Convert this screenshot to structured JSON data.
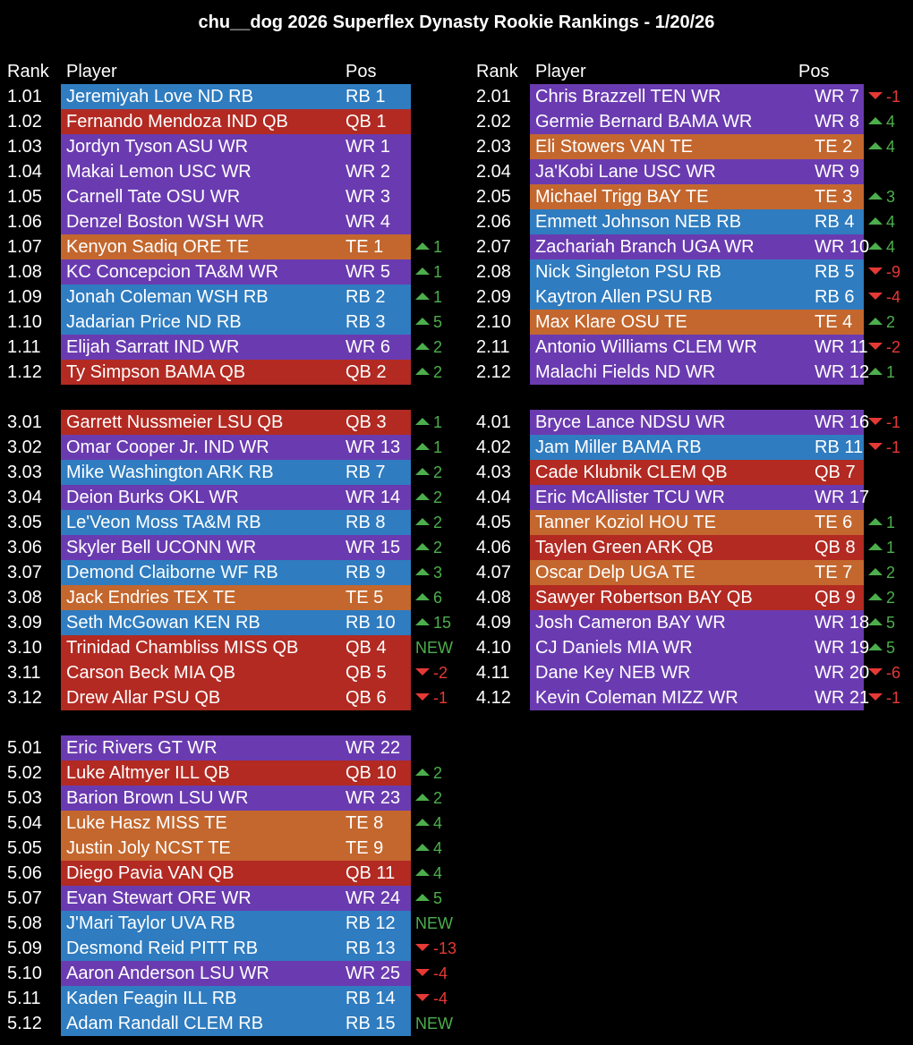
{
  "title": "chu__dog 2026 Superflex Dynasty Rookie Rankings - 1/20/26",
  "headers": {
    "rank": "Rank",
    "player": "Player",
    "pos": "Pos"
  },
  "colors": {
    "RB": "#2f7cc0",
    "QB": "#b22a22",
    "WR": "#6a3bb0",
    "TE": "#c3672e",
    "up": "#4cae4c",
    "down": "#e53935"
  },
  "left": [
    {
      "rank": "1.01",
      "player": "Jeremiyah Love ND RB",
      "pos": "RB 1",
      "type": "RB",
      "chg": "",
      "dir": ""
    },
    {
      "rank": "1.02",
      "player": "Fernando Mendoza IND QB",
      "pos": "QB 1",
      "type": "QB",
      "chg": "",
      "dir": ""
    },
    {
      "rank": "1.03",
      "player": "Jordyn Tyson ASU WR",
      "pos": "WR 1",
      "type": "WR",
      "chg": "",
      "dir": ""
    },
    {
      "rank": "1.04",
      "player": "Makai Lemon USC WR",
      "pos": "WR 2",
      "type": "WR",
      "chg": "",
      "dir": ""
    },
    {
      "rank": "1.05",
      "player": "Carnell Tate OSU WR",
      "pos": "WR 3",
      "type": "WR",
      "chg": "",
      "dir": ""
    },
    {
      "rank": "1.06",
      "player": "Denzel Boston WSH WR",
      "pos": "WR 4",
      "type": "WR",
      "chg": "",
      "dir": ""
    },
    {
      "rank": "1.07",
      "player": "Kenyon Sadiq ORE TE",
      "pos": "TE 1",
      "type": "TE",
      "chg": "1",
      "dir": "up"
    },
    {
      "rank": "1.08",
      "player": "KC Concepcion TA&M WR",
      "pos": "WR 5",
      "type": "WR",
      "chg": "1",
      "dir": "up"
    },
    {
      "rank": "1.09",
      "player": "Jonah Coleman WSH RB",
      "pos": "RB 2",
      "type": "RB",
      "chg": "1",
      "dir": "up"
    },
    {
      "rank": "1.10",
      "player": "Jadarian Price ND RB",
      "pos": "RB 3",
      "type": "RB",
      "chg": "5",
      "dir": "up"
    },
    {
      "rank": "1.11",
      "player": "Elijah Sarratt IND WR",
      "pos": "WR 6",
      "type": "WR",
      "chg": "2",
      "dir": "up"
    },
    {
      "rank": "1.12",
      "player": "Ty Simpson BAMA QB",
      "pos": "QB 2",
      "type": "QB",
      "chg": "2",
      "dir": "up"
    },
    {
      "gap": true
    },
    {
      "rank": "3.01",
      "player": "Garrett Nussmeier LSU QB",
      "pos": "QB 3",
      "type": "QB",
      "chg": "1",
      "dir": "up"
    },
    {
      "rank": "3.02",
      "player": "Omar Cooper Jr. IND WR",
      "pos": "WR 13",
      "type": "WR",
      "chg": "1",
      "dir": "up"
    },
    {
      "rank": "3.03",
      "player": "Mike Washington ARK RB",
      "pos": "RB 7",
      "type": "RB",
      "chg": "2",
      "dir": "up"
    },
    {
      "rank": "3.04",
      "player": "Deion Burks OKL WR",
      "pos": "WR 14",
      "type": "WR",
      "chg": "2",
      "dir": "up"
    },
    {
      "rank": "3.05",
      "player": "Le'Veon Moss TA&M RB",
      "pos": "RB 8",
      "type": "RB",
      "chg": "2",
      "dir": "up"
    },
    {
      "rank": "3.06",
      "player": "Skyler Bell UCONN WR",
      "pos": "WR 15",
      "type": "WR",
      "chg": "2",
      "dir": "up"
    },
    {
      "rank": "3.07",
      "player": "Demond Claiborne WF RB",
      "pos": "RB 9",
      "type": "RB",
      "chg": "3",
      "dir": "up"
    },
    {
      "rank": "3.08",
      "player": "Jack Endries TEX TE",
      "pos": "TE 5",
      "type": "TE",
      "chg": "6",
      "dir": "up"
    },
    {
      "rank": "3.09",
      "player": "Seth McGowan KEN RB",
      "pos": "RB 10",
      "type": "RB",
      "chg": "15",
      "dir": "up"
    },
    {
      "rank": "3.10",
      "player": "Trinidad Chambliss MISS QB",
      "pos": "QB 4",
      "type": "QB",
      "chg": "NEW",
      "dir": "new"
    },
    {
      "rank": "3.11",
      "player": "Carson Beck MIA QB",
      "pos": "QB 5",
      "type": "QB",
      "chg": "-2",
      "dir": "down"
    },
    {
      "rank": "3.12",
      "player": "Drew Allar PSU QB",
      "pos": "QB 6",
      "type": "QB",
      "chg": "-1",
      "dir": "down"
    },
    {
      "gap": true
    },
    {
      "rank": "5.01",
      "player": "Eric Rivers GT WR",
      "pos": "WR 22",
      "type": "WR",
      "chg": "",
      "dir": ""
    },
    {
      "rank": "5.02",
      "player": "Luke Altmyer ILL QB",
      "pos": "QB 10",
      "type": "QB",
      "chg": "2",
      "dir": "up"
    },
    {
      "rank": "5.03",
      "player": "Barion Brown LSU WR",
      "pos": "WR 23",
      "type": "WR",
      "chg": "2",
      "dir": "up"
    },
    {
      "rank": "5.04",
      "player": "Luke Hasz MISS TE",
      "pos": "TE 8",
      "type": "TE",
      "chg": "4",
      "dir": "up"
    },
    {
      "rank": "5.05",
      "player": "Justin Joly NCST TE",
      "pos": "TE 9",
      "type": "TE",
      "chg": "4",
      "dir": "up"
    },
    {
      "rank": "5.06",
      "player": "Diego Pavia VAN QB",
      "pos": "QB 11",
      "type": "QB",
      "chg": "4",
      "dir": "up"
    },
    {
      "rank": "5.07",
      "player": "Evan Stewart ORE WR",
      "pos": "WR 24",
      "type": "WR",
      "chg": "5",
      "dir": "up"
    },
    {
      "rank": "5.08",
      "player": "J'Mari Taylor UVA RB",
      "pos": "RB 12",
      "type": "RB",
      "chg": "NEW",
      "dir": "new"
    },
    {
      "rank": "5.09",
      "player": "Desmond Reid PITT RB",
      "pos": "RB 13",
      "type": "RB",
      "chg": "-13",
      "dir": "down"
    },
    {
      "rank": "5.10",
      "player": "Aaron Anderson LSU WR",
      "pos": "WR 25",
      "type": "WR",
      "chg": "-4",
      "dir": "down"
    },
    {
      "rank": "5.11",
      "player": "Kaden Feagin ILL RB",
      "pos": "RB 14",
      "type": "RB",
      "chg": "-4",
      "dir": "down"
    },
    {
      "rank": "5.12",
      "player": "Adam Randall CLEM RB",
      "pos": "RB 15",
      "type": "RB",
      "chg": "NEW",
      "dir": "new"
    }
  ],
  "right": [
    {
      "rank": "2.01",
      "player": "Chris Brazzell TEN WR",
      "pos": "WR 7",
      "type": "WR",
      "chg": "-1",
      "dir": "down"
    },
    {
      "rank": "2.02",
      "player": "Germie Bernard BAMA WR",
      "pos": "WR 8",
      "type": "WR",
      "chg": "4",
      "dir": "up"
    },
    {
      "rank": "2.03",
      "player": "Eli Stowers VAN TE",
      "pos": "TE 2",
      "type": "TE",
      "chg": "4",
      "dir": "up"
    },
    {
      "rank": "2.04",
      "player": "Ja'Kobi Lane USC WR",
      "pos": "WR 9",
      "type": "WR",
      "chg": "",
      "dir": ""
    },
    {
      "rank": "2.05",
      "player": "Michael Trigg BAY TE",
      "pos": "TE 3",
      "type": "TE",
      "chg": "3",
      "dir": "up"
    },
    {
      "rank": "2.06",
      "player": "Emmett Johnson NEB RB",
      "pos": "RB 4",
      "type": "RB",
      "chg": "4",
      "dir": "up"
    },
    {
      "rank": "2.07",
      "player": "Zachariah Branch UGA WR",
      "pos": "WR 10",
      "type": "WR",
      "chg": "4",
      "dir": "up"
    },
    {
      "rank": "2.08",
      "player": "Nick Singleton PSU RB",
      "pos": "RB 5",
      "type": "RB",
      "chg": "-9",
      "dir": "down"
    },
    {
      "rank": "2.09",
      "player": "Kaytron Allen PSU RB",
      "pos": "RB 6",
      "type": "RB",
      "chg": "-4",
      "dir": "down"
    },
    {
      "rank": "2.10",
      "player": "Max Klare OSU TE",
      "pos": "TE 4",
      "type": "TE",
      "chg": "2",
      "dir": "up"
    },
    {
      "rank": "2.11",
      "player": "Antonio Williams CLEM WR",
      "pos": "WR 11",
      "type": "WR",
      "chg": "-2",
      "dir": "down"
    },
    {
      "rank": "2.12",
      "player": "Malachi Fields ND WR",
      "pos": "WR 12",
      "type": "WR",
      "chg": "1",
      "dir": "up"
    },
    {
      "gap": true
    },
    {
      "rank": "4.01",
      "player": "Bryce Lance NDSU WR",
      "pos": "WR 16",
      "type": "WR",
      "chg": "-1",
      "dir": "down"
    },
    {
      "rank": "4.02",
      "player": "Jam Miller BAMA RB",
      "pos": "RB 11",
      "type": "RB",
      "chg": "-1",
      "dir": "down"
    },
    {
      "rank": "4.03",
      "player": "Cade Klubnik CLEM QB",
      "pos": "QB 7",
      "type": "QB",
      "chg": "",
      "dir": ""
    },
    {
      "rank": "4.04",
      "player": "Eric McAllister TCU WR",
      "pos": "WR 17",
      "type": "WR",
      "chg": "",
      "dir": ""
    },
    {
      "rank": "4.05",
      "player": "Tanner Koziol HOU TE",
      "pos": "TE 6",
      "type": "TE",
      "chg": "1",
      "dir": "up"
    },
    {
      "rank": "4.06",
      "player": "Taylen Green ARK QB",
      "pos": "QB 8",
      "type": "QB",
      "chg": "1",
      "dir": "up"
    },
    {
      "rank": "4.07",
      "player": "Oscar Delp UGA TE",
      "pos": "TE 7",
      "type": "TE",
      "chg": "2",
      "dir": "up"
    },
    {
      "rank": "4.08",
      "player": "Sawyer Robertson BAY QB",
      "pos": "QB 9",
      "type": "QB",
      "chg": "2",
      "dir": "up"
    },
    {
      "rank": "4.09",
      "player": "Josh Cameron BAY WR",
      "pos": "WR 18",
      "type": "WR",
      "chg": "5",
      "dir": "up"
    },
    {
      "rank": "4.10",
      "player": "CJ Daniels MIA WR",
      "pos": "WR 19",
      "type": "WR",
      "chg": "5",
      "dir": "up"
    },
    {
      "rank": "4.11",
      "player": "Dane Key NEB WR",
      "pos": "WR 20",
      "type": "WR",
      "chg": "-6",
      "dir": "down"
    },
    {
      "rank": "4.12",
      "player": "Kevin Coleman MIZZ WR",
      "pos": "WR 21",
      "type": "WR",
      "chg": "-1",
      "dir": "down"
    }
  ]
}
